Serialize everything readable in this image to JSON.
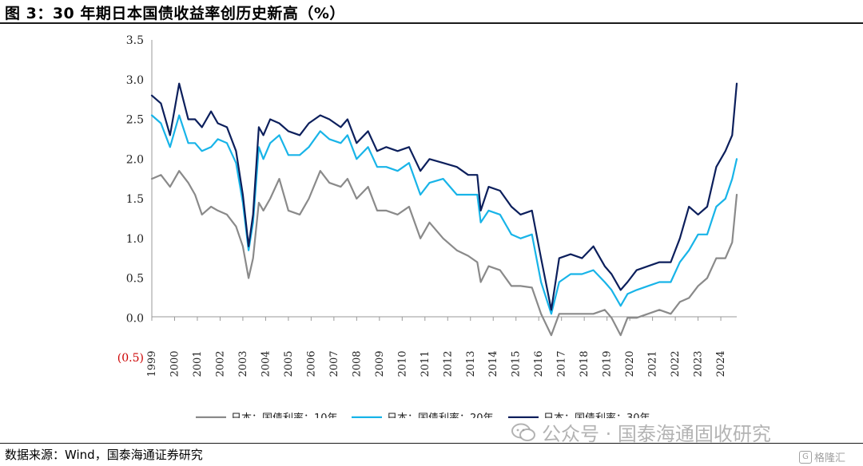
{
  "title": "图 3：30 年期日本国债收益率创历史新高（%）",
  "source": "数据来源：Wind，国泰海通证券研究",
  "watermark": "公众号 · 国泰海通固收研究",
  "badge": "格隆汇",
  "colors": {
    "s10": "#8a8a8a",
    "s20": "#18b4e8",
    "s30": "#0c1f5c",
    "negative_tick": "#cc0000"
  },
  "chart_data": {
    "type": "line",
    "ylim": [
      -0.5,
      3.5
    ],
    "yticks": [
      3.5,
      3.0,
      2.5,
      2.0,
      1.5,
      1.0,
      0.5,
      0.0,
      -0.5
    ],
    "ytick_labels": [
      "3.5",
      "3.0",
      "2.5",
      "2.0",
      "1.5",
      "1.0",
      "0.5",
      "0.0",
      "(0.5)"
    ],
    "xlim": [
      1999,
      2024.7
    ],
    "x_tick_labels": [
      "1999",
      "2000",
      "2001",
      "2002",
      "2003",
      "2004",
      "2005",
      "2006",
      "2007",
      "2008",
      "2009",
      "2010",
      "2011",
      "2012",
      "2013",
      "2014",
      "2015",
      "2016",
      "2017",
      "2018",
      "2019",
      "2020",
      "2021",
      "2022",
      "2023",
      "2024"
    ],
    "legend_position": "bottom-center",
    "grid": false,
    "series": [
      {
        "name": "日本：国债利率：10年",
        "key": "s10",
        "x": [
          1999.0,
          1999.4,
          1999.8,
          2000.2,
          2000.6,
          2000.9,
          2001.2,
          2001.6,
          2001.9,
          2002.3,
          2002.7,
          2003.0,
          2003.25,
          2003.45,
          2003.7,
          2003.9,
          2004.2,
          2004.6,
          2005.0,
          2005.5,
          2005.9,
          2006.4,
          2006.8,
          2007.3,
          2007.6,
          2008.0,
          2008.5,
          2008.9,
          2009.3,
          2009.8,
          2010.3,
          2010.8,
          2011.2,
          2011.8,
          2012.4,
          2012.9,
          2013.3,
          2013.45,
          2013.8,
          2014.3,
          2014.8,
          2015.2,
          2015.7,
          2016.1,
          2016.55,
          2016.9,
          2017.4,
          2017.9,
          2018.4,
          2018.9,
          2019.2,
          2019.6,
          2019.9,
          2020.3,
          2020.8,
          2021.3,
          2021.8,
          2022.2,
          2022.6,
          2023.0,
          2023.4,
          2023.8,
          2024.2,
          2024.5,
          2024.7
        ],
        "values": [
          1.75,
          1.8,
          1.65,
          1.85,
          1.7,
          1.55,
          1.3,
          1.4,
          1.35,
          1.3,
          1.15,
          0.9,
          0.5,
          0.75,
          1.45,
          1.35,
          1.5,
          1.75,
          1.35,
          1.3,
          1.5,
          1.85,
          1.7,
          1.65,
          1.75,
          1.5,
          1.65,
          1.35,
          1.35,
          1.3,
          1.4,
          1.0,
          1.2,
          1.0,
          0.85,
          0.78,
          0.7,
          0.45,
          0.65,
          0.6,
          0.4,
          0.4,
          0.38,
          0.05,
          -0.22,
          0.05,
          0.05,
          0.05,
          0.05,
          0.1,
          0.0,
          -0.22,
          0.0,
          0.0,
          0.05,
          0.1,
          0.05,
          0.2,
          0.25,
          0.4,
          0.5,
          0.75,
          0.75,
          0.95,
          1.55
        ]
      },
      {
        "name": "日本：国债利率：20年",
        "key": "s20",
        "x": [
          1999.0,
          1999.4,
          1999.8,
          2000.2,
          2000.6,
          2000.9,
          2001.2,
          2001.6,
          2001.9,
          2002.3,
          2002.7,
          2003.0,
          2003.25,
          2003.45,
          2003.7,
          2003.9,
          2004.2,
          2004.6,
          2005.0,
          2005.5,
          2005.9,
          2006.4,
          2006.8,
          2007.3,
          2007.6,
          2008.0,
          2008.5,
          2008.9,
          2009.3,
          2009.8,
          2010.3,
          2010.8,
          2011.2,
          2011.8,
          2012.4,
          2012.9,
          2013.3,
          2013.45,
          2013.8,
          2014.3,
          2014.8,
          2015.2,
          2015.7,
          2016.1,
          2016.55,
          2016.9,
          2017.4,
          2017.9,
          2018.4,
          2018.9,
          2019.2,
          2019.6,
          2019.9,
          2020.3,
          2020.8,
          2021.3,
          2021.8,
          2022.2,
          2022.6,
          2023.0,
          2023.4,
          2023.8,
          2024.2,
          2024.5,
          2024.7
        ],
        "values": [
          2.55,
          2.45,
          2.15,
          2.55,
          2.2,
          2.2,
          2.1,
          2.15,
          2.25,
          2.2,
          1.95,
          1.45,
          0.85,
          1.2,
          2.15,
          2.0,
          2.2,
          2.3,
          2.05,
          2.05,
          2.15,
          2.35,
          2.25,
          2.2,
          2.3,
          2.0,
          2.15,
          1.9,
          1.9,
          1.85,
          1.95,
          1.55,
          1.7,
          1.75,
          1.55,
          1.55,
          1.55,
          1.2,
          1.35,
          1.3,
          1.05,
          1.0,
          1.05,
          0.45,
          0.05,
          0.45,
          0.55,
          0.55,
          0.6,
          0.45,
          0.35,
          0.15,
          0.3,
          0.35,
          0.4,
          0.45,
          0.45,
          0.7,
          0.85,
          1.05,
          1.05,
          1.4,
          1.5,
          1.75,
          2.0
        ]
      },
      {
        "name": "日本：国债利率：30年",
        "key": "s30",
        "x": [
          1999.0,
          1999.4,
          1999.8,
          2000.2,
          2000.6,
          2000.9,
          2001.2,
          2001.6,
          2001.9,
          2002.3,
          2002.7,
          2003.0,
          2003.25,
          2003.45,
          2003.7,
          2003.9,
          2004.2,
          2004.6,
          2005.0,
          2005.5,
          2005.9,
          2006.4,
          2006.8,
          2007.3,
          2007.6,
          2008.0,
          2008.5,
          2008.9,
          2009.3,
          2009.8,
          2010.3,
          2010.8,
          2011.2,
          2011.8,
          2012.4,
          2012.9,
          2013.3,
          2013.45,
          2013.8,
          2014.3,
          2014.8,
          2015.2,
          2015.7,
          2016.1,
          2016.55,
          2016.9,
          2017.4,
          2017.9,
          2018.4,
          2018.9,
          2019.2,
          2019.6,
          2019.9,
          2020.3,
          2020.8,
          2021.3,
          2021.8,
          2022.2,
          2022.6,
          2023.0,
          2023.4,
          2023.8,
          2024.2,
          2024.5,
          2024.7
        ],
        "values": [
          2.8,
          2.7,
          2.3,
          2.95,
          2.5,
          2.5,
          2.4,
          2.6,
          2.45,
          2.4,
          2.1,
          1.55,
          0.9,
          1.3,
          2.4,
          2.3,
          2.5,
          2.45,
          2.35,
          2.3,
          2.45,
          2.55,
          2.5,
          2.4,
          2.5,
          2.2,
          2.35,
          2.1,
          2.15,
          2.1,
          2.15,
          1.85,
          2.0,
          1.95,
          1.9,
          1.8,
          1.8,
          1.35,
          1.65,
          1.6,
          1.4,
          1.3,
          1.35,
          0.75,
          0.1,
          0.75,
          0.8,
          0.75,
          0.9,
          0.65,
          0.55,
          0.35,
          0.45,
          0.6,
          0.65,
          0.7,
          0.7,
          1.0,
          1.4,
          1.3,
          1.4,
          1.9,
          2.1,
          2.3,
          2.95
        ]
      }
    ]
  }
}
